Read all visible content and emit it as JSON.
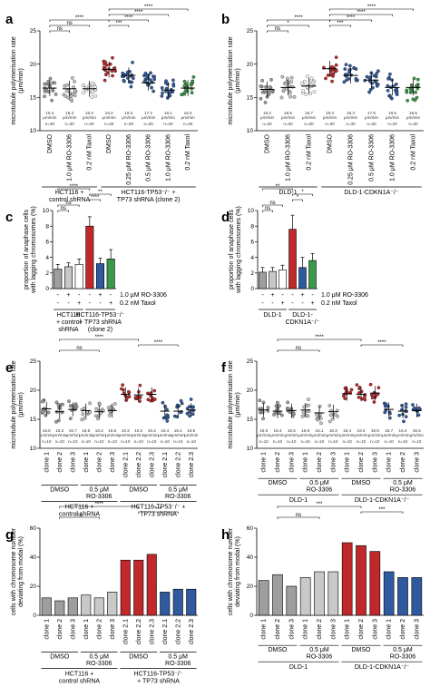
{
  "colors": {
    "grey": "#9e9e9e",
    "lightgrey": "#c8c8c8",
    "red": "#c0282b",
    "blue": "#2f5aa0",
    "green": "#3a9a4a",
    "black": "#000000",
    "white": "#ffffff"
  },
  "chart_data": [
    {
      "id": "a",
      "label": "a",
      "type": "scatter",
      "ylabel_lines": [
        "microtubule polymerisation rate",
        "(μm/min)"
      ],
      "ylim": [
        10,
        25
      ],
      "yticks": [
        10,
        15,
        20,
        25
      ],
      "categories": [
        "DMSO",
        "1.0 μM RO-3306",
        "0.2 nM Taxol",
        "DMSO",
        "0.25 μM RO-3306",
        "0.5 μM RO-3306",
        "1.0 μM RO-3306",
        "0.2 nM Taxol"
      ],
      "colors": [
        "#9e9e9e",
        "#c8c8c8",
        "#ffffff",
        "#c0282b",
        "#2f5aa0",
        "#2f5aa0",
        "#2f5aa0",
        "#3a9a4a"
      ],
      "values": [
        16.4,
        16.3,
        16.3,
        19.2,
        18.3,
        17.2,
        16.1,
        16.4
      ],
      "value_labels": [
        "16.4",
        "16.3",
        "16.3",
        "19.2",
        "18.3",
        "17.2",
        "16.1",
        "16.4"
      ],
      "unit_label": "μm/min",
      "n_labels": [
        "n=30",
        "n=30",
        "n=30",
        "n=30",
        "n=30",
        "n=30",
        "n=30",
        "n=30"
      ],
      "groups": [
        {
          "lines": [
            "HCT116 +",
            "control shRNA"
          ],
          "from": 0,
          "to": 2
        },
        {
          "lines": [
            "HCT116-TP53⁻/⁻ +",
            "TP73 shRNA (clone 2)"
          ],
          "from": 3,
          "to": 7
        }
      ],
      "significance": [
        {
          "text": "****",
          "from": 3,
          "to": 7,
          "level": 0
        },
        {
          "text": "****",
          "from": 3,
          "to": 6,
          "level": 1
        },
        {
          "text": "****",
          "from": 3,
          "to": 5,
          "level": 2
        },
        {
          "text": "***",
          "from": 3,
          "to": 4,
          "level": 3
        },
        {
          "text": "****",
          "from": 0,
          "to": 3,
          "level": 2
        },
        {
          "text": "ns",
          "from": 0,
          "to": 2,
          "level": 3
        },
        {
          "text": "ns",
          "from": 0,
          "to": 1,
          "level": 4
        }
      ]
    },
    {
      "id": "b",
      "label": "b",
      "type": "scatter",
      "ylabel_lines": [
        "microtubule polymerisation rate",
        "(μm/min)"
      ],
      "ylim": [
        10,
        25
      ],
      "yticks": [
        10,
        15,
        20,
        25
      ],
      "categories": [
        "DMSO",
        "1.0 μM RO-3306",
        "0.2 nM Taxol",
        "DMSO",
        "0.25 μM RO-3306",
        "0.5 μM RO-3306",
        "1.0 μM RO-3306",
        "0.2 nM Taxol"
      ],
      "colors": [
        "#9e9e9e",
        "#c8c8c8",
        "#ffffff",
        "#c0282b",
        "#2f5aa0",
        "#2f5aa0",
        "#2f5aa0",
        "#3a9a4a"
      ],
      "values": [
        16.2,
        16.5,
        16.7,
        19.3,
        18.3,
        17.6,
        16.5,
        16.5
      ],
      "value_labels": [
        "16.2",
        "16.5",
        "16.7",
        "19.3",
        "18.3",
        "17.6",
        "16.5",
        "16.5"
      ],
      "unit_label": "μm/min",
      "n_labels": [
        "n=30",
        "n=30",
        "n=30",
        "n=30",
        "n=30",
        "n=30",
        "n=30",
        "n=30"
      ],
      "groups": [
        {
          "lines": [
            "DLD-1"
          ],
          "from": 0,
          "to": 2
        },
        {
          "lines": [
            "DLD-1-CDKN1A⁻/⁻"
          ],
          "from": 3,
          "to": 7
        }
      ],
      "significance": [
        {
          "text": "****",
          "from": 3,
          "to": 7,
          "level": 0
        },
        {
          "text": "****",
          "from": 3,
          "to": 6,
          "level": 1
        },
        {
          "text": "****",
          "from": 3,
          "to": 5,
          "level": 2
        },
        {
          "text": "***",
          "from": 3,
          "to": 4,
          "level": 3
        },
        {
          "text": "****",
          "from": 0,
          "to": 3,
          "level": 2
        },
        {
          "text": "*",
          "from": 0,
          "to": 2,
          "level": 3
        },
        {
          "text": "ns",
          "from": 0,
          "to": 1,
          "level": 4
        }
      ]
    },
    {
      "id": "c",
      "label": "c",
      "type": "bar",
      "ylabel_lines": [
        "proportion of anaphase cells",
        "with lagging chromosomes (%)"
      ],
      "ylim": [
        0,
        10
      ],
      "yticks": [
        0,
        2,
        4,
        6,
        8,
        10
      ],
      "values": [
        2.5,
        2.8,
        3.1,
        8.0,
        3.2,
        3.8
      ],
      "errors": [
        0.6,
        0.5,
        0.7,
        1.2,
        0.7,
        1.2
      ],
      "colors": [
        "#9e9e9e",
        "#c8c8c8",
        "#ffffff",
        "#c0282b",
        "#2f5aa0",
        "#3a9a4a"
      ],
      "ro_marks": [
        "-",
        "+",
        "-",
        "-",
        "+",
        "-"
      ],
      "taxol_marks": [
        "-",
        "-",
        "+",
        "-",
        "-",
        "+"
      ],
      "legend": [
        "1.0 μM RO-3306",
        "0.2 nM Taxol"
      ],
      "groups": [
        {
          "lines": [
            "HCT116",
            "+ control",
            "shRNA"
          ],
          "from": 0,
          "to": 2
        },
        {
          "lines": [
            "HCT116-TP53⁻/⁻",
            "+ TP73 shRNA",
            "(clone 2)"
          ],
          "from": 3,
          "to": 5
        }
      ],
      "significance": [
        {
          "text": "****",
          "from": 0,
          "to": 3,
          "level": 0
        },
        {
          "text": "**",
          "from": 3,
          "to": 5,
          "level": 1
        },
        {
          "text": "****",
          "from": 3,
          "to": 4,
          "level": 2
        },
        {
          "text": "ns",
          "from": 0,
          "to": 2,
          "level": 3
        },
        {
          "text": "ns",
          "from": 0,
          "to": 1,
          "level": 4
        }
      ]
    },
    {
      "id": "d",
      "label": "d",
      "type": "bar",
      "ylabel_lines": [
        "proportion of anaphase cells",
        "with lagging chromosomes (%)"
      ],
      "ylim": [
        0,
        10
      ],
      "yticks": [
        0,
        2,
        4,
        6,
        8,
        10
      ],
      "values": [
        2.1,
        2.2,
        2.4,
        7.6,
        2.7,
        3.6
      ],
      "errors": [
        0.6,
        0.5,
        0.6,
        1.8,
        1.3,
        0.9
      ],
      "colors": [
        "#9e9e9e",
        "#c8c8c8",
        "#ffffff",
        "#c0282b",
        "#2f5aa0",
        "#3a9a4a"
      ],
      "ro_marks": [
        "-",
        "+",
        "-",
        "-",
        "+",
        "-"
      ],
      "taxol_marks": [
        "-",
        "-",
        "+",
        "-",
        "-",
        "+"
      ],
      "legend": [
        "1.0 μM RO-3306",
        "0.2 nM Taxol"
      ],
      "groups": [
        {
          "lines": [
            "DLD-1"
          ],
          "from": 0,
          "to": 2
        },
        {
          "lines": [
            "DLD-1-",
            "CDKN1A⁻/⁻"
          ],
          "from": 3,
          "to": 5
        }
      ],
      "significance": [
        {
          "text": "**",
          "from": 0,
          "to": 3,
          "level": 0
        },
        {
          "text": "*",
          "from": 3,
          "to": 5,
          "level": 1
        },
        {
          "text": "*",
          "from": 3,
          "to": 4,
          "level": 2
        },
        {
          "text": "ns",
          "from": 0,
          "to": 2,
          "level": 3
        },
        {
          "text": "ns",
          "from": 0,
          "to": 1,
          "level": 4
        }
      ]
    },
    {
      "id": "e",
      "label": "e",
      "type": "scatter",
      "ylabel_lines": [
        "microtubule polymerisation rate",
        "(μm/min)"
      ],
      "ylim": [
        10,
        25
      ],
      "yticks": [
        10,
        15,
        20,
        25
      ],
      "categories": [
        "clone 1",
        "clone 2",
        "clone 3",
        "clone 1",
        "clone 2",
        "clone 3",
        "clone 2.1",
        "clone 2.2",
        "clone 2.3",
        "clone 2.1",
        "clone 2.2",
        "clone 2.3"
      ],
      "colors": [
        "#9e9e9e",
        "#9e9e9e",
        "#9e9e9e",
        "#c8c8c8",
        "#c8c8c8",
        "#c8c8c8",
        "#c0282b",
        "#c0282b",
        "#c0282b",
        "#2f5aa0",
        "#2f5aa0",
        "#2f5aa0"
      ],
      "values": [
        16.8,
        16.3,
        16.7,
        16.5,
        16.3,
        16.5,
        19.3,
        19.2,
        19.3,
        16.4,
        16.4,
        16.6
      ],
      "value_labels": [
        "16.8",
        "16.3",
        "16.7",
        "16.5",
        "16.3",
        "16.5",
        "19.3",
        "19.2",
        "19.3",
        "16.4",
        "16.4",
        "16.6"
      ],
      "unit_label": "μm/min",
      "n_labels": [
        "n=10",
        "n=10",
        "n=10",
        "n=10",
        "n=10",
        "n=10",
        "n=10",
        "n=10",
        "n=10",
        "n=10",
        "n=10",
        "n=10"
      ],
      "treatments": [
        {
          "lines": [
            "DMSO"
          ],
          "from": 0,
          "to": 2
        },
        {
          "lines": [
            "0.5 μM",
            "RO-3306"
          ],
          "from": 3,
          "to": 5
        },
        {
          "lines": [
            "DMSO"
          ],
          "from": 6,
          "to": 8
        },
        {
          "lines": [
            "0.5 μM",
            "RO-3306"
          ],
          "from": 9,
          "to": 11
        }
      ],
      "groups": [
        {
          "lines": [
            "HCT116 +",
            "control shRNA"
          ],
          "from": 0,
          "to": 5
        },
        {
          "lines": [
            "HCT116-TP53⁻/⁻ +",
            "TP73 shRNA"
          ],
          "from": 6,
          "to": 11
        }
      ],
      "significance": [
        {
          "text": "****",
          "from": 1,
          "to": 7,
          "level": 0
        },
        {
          "text": "****",
          "from": 7,
          "to": 10,
          "level": 1
        },
        {
          "text": "ns",
          "from": 1,
          "to": 4,
          "level": 2
        }
      ]
    },
    {
      "id": "f",
      "label": "f",
      "type": "scatter",
      "ylabel_lines": [
        "microtubule polymerisation rate",
        "(μm/min)"
      ],
      "ylim": [
        10,
        25
      ],
      "yticks": [
        10,
        15,
        20,
        25
      ],
      "categories": [
        "clone 1",
        "clone 2",
        "clone 3",
        "clone 1",
        "clone 2",
        "clone 3",
        "clone 1",
        "clone 2",
        "clone 3",
        "clone 1",
        "clone 2",
        "clone 3"
      ],
      "colors": [
        "#9e9e9e",
        "#9e9e9e",
        "#9e9e9e",
        "#c8c8c8",
        "#c8c8c8",
        "#c8c8c8",
        "#c0282b",
        "#c0282b",
        "#c0282b",
        "#2f5aa0",
        "#2f5aa0",
        "#2f5aa0"
      ],
      "values": [
        16.6,
        16.4,
        16.5,
        16.6,
        16.1,
        16.3,
        19.4,
        19.3,
        19.5,
        16.7,
        16.4,
        16.5
      ],
      "value_labels": [
        "16.6",
        "16.4",
        "16.5",
        "16.6",
        "16.1",
        "16.3",
        "19.4",
        "19.3",
        "19.5",
        "16.7",
        "16.4",
        "16.5"
      ],
      "unit_label": "μm/min",
      "n_labels": [
        "n=10",
        "n=10",
        "n=10",
        "n=10",
        "n=10",
        "n=10",
        "n=10",
        "n=10",
        "n=10",
        "n=10",
        "n=10",
        "n=10"
      ],
      "treatments": [
        {
          "lines": [
            "DMSO"
          ],
          "from": 0,
          "to": 2
        },
        {
          "lines": [
            "0.5 μM",
            "RO-3306"
          ],
          "from": 3,
          "to": 5
        },
        {
          "lines": [
            "DMSO"
          ],
          "from": 6,
          "to": 8
        },
        {
          "lines": [
            "0.5 μM",
            "RO-3306"
          ],
          "from": 9,
          "to": 11
        }
      ],
      "groups": [
        {
          "lines": [
            "DLD-1"
          ],
          "from": 0,
          "to": 5
        },
        {
          "lines": [
            "DLD-1-CDKN1A⁻/⁻"
          ],
          "from": 6,
          "to": 11
        }
      ],
      "significance": [
        {
          "text": "****",
          "from": 1,
          "to": 7,
          "level": 0
        },
        {
          "text": "****",
          "from": 7,
          "to": 10,
          "level": 1
        },
        {
          "text": "ns",
          "from": 1,
          "to": 4,
          "level": 2
        }
      ]
    },
    {
      "id": "g",
      "label": "g",
      "type": "bar",
      "ylabel_lines": [
        "cells with chromosome number",
        "deviating from modal (%)"
      ],
      "ylim": [
        0,
        60
      ],
      "yticks": [
        0,
        20,
        40,
        60
      ],
      "categories": [
        "clone 1",
        "clone 2",
        "clone 3",
        "clone 1",
        "clone 2",
        "clone 3",
        "clone 2.1",
        "clone 2.2",
        "clone 2.3",
        "clone 2.1",
        "clone 2.2",
        "clone 2.3"
      ],
      "values": [
        12,
        10,
        12,
        14,
        12,
        16,
        38,
        38,
        42,
        16,
        18,
        18
      ],
      "colors": [
        "#9e9e9e",
        "#9e9e9e",
        "#9e9e9e",
        "#c8c8c8",
        "#c8c8c8",
        "#c8c8c8",
        "#c0282b",
        "#c0282b",
        "#c0282b",
        "#2f5aa0",
        "#2f5aa0",
        "#2f5aa0"
      ],
      "treatments": [
        {
          "lines": [
            "DMSO"
          ],
          "from": 0,
          "to": 2
        },
        {
          "lines": [
            "0.5 μM",
            "RO-3306"
          ],
          "from": 3,
          "to": 5
        },
        {
          "lines": [
            "DMSO"
          ],
          "from": 6,
          "to": 8
        },
        {
          "lines": [
            "0.5 μM",
            "RO-3306"
          ],
          "from": 9,
          "to": 11
        }
      ],
      "groups": [
        {
          "lines": [
            "HCT116 +",
            "control shRNA"
          ],
          "from": 0,
          "to": 5
        },
        {
          "lines": [
            "HCT116-TP53⁻/⁻",
            "+ TP73 shRNA"
          ],
          "from": 6,
          "to": 11
        }
      ],
      "significance": [
        {
          "text": "****",
          "from": 1,
          "to": 7,
          "level": 0
        },
        {
          "text": "***",
          "from": 7,
          "to": 10,
          "level": 1
        },
        {
          "text": "ns",
          "from": 1,
          "to": 4,
          "level": 2
        }
      ]
    },
    {
      "id": "h",
      "label": "h",
      "type": "bar",
      "ylabel_lines": [
        "cells with chromosome number",
        "deviating from modal (%)"
      ],
      "ylim": [
        0,
        60
      ],
      "yticks": [
        0,
        20,
        40,
        60
      ],
      "categories": [
        "clone 1",
        "clone 2",
        "clone 3",
        "clone 1",
        "clone 2",
        "clone 3",
        "clone 1",
        "clone 2",
        "clone 3",
        "clone 1",
        "clone 2",
        "clone 3"
      ],
      "values": [
        24,
        28,
        20,
        26,
        30,
        30,
        50,
        48,
        44,
        30,
        26,
        26
      ],
      "colors": [
        "#9e9e9e",
        "#9e9e9e",
        "#9e9e9e",
        "#c8c8c8",
        "#c8c8c8",
        "#c8c8c8",
        "#c0282b",
        "#c0282b",
        "#c0282b",
        "#2f5aa0",
        "#2f5aa0",
        "#2f5aa0"
      ],
      "treatments": [
        {
          "lines": [
            "DMSO"
          ],
          "from": 0,
          "to": 2
        },
        {
          "lines": [
            "0.5 μM",
            "RO-3306"
          ],
          "from": 3,
          "to": 5
        },
        {
          "lines": [
            "DMSO"
          ],
          "from": 6,
          "to": 8
        },
        {
          "lines": [
            "0.5 μM",
            "RO-3306"
          ],
          "from": 9,
          "to": 11
        }
      ],
      "groups": [
        {
          "lines": [
            "DLD-1"
          ],
          "from": 0,
          "to": 5
        },
        {
          "lines": [
            "DLD-1-CDKN1A⁻/⁻"
          ],
          "from": 6,
          "to": 11
        }
      ],
      "significance": [
        {
          "text": "***",
          "from": 1,
          "to": 7,
          "level": 0
        },
        {
          "text": "***",
          "from": 7,
          "to": 10,
          "level": 1
        },
        {
          "text": "ns",
          "from": 1,
          "to": 4,
          "level": 2
        }
      ]
    }
  ]
}
